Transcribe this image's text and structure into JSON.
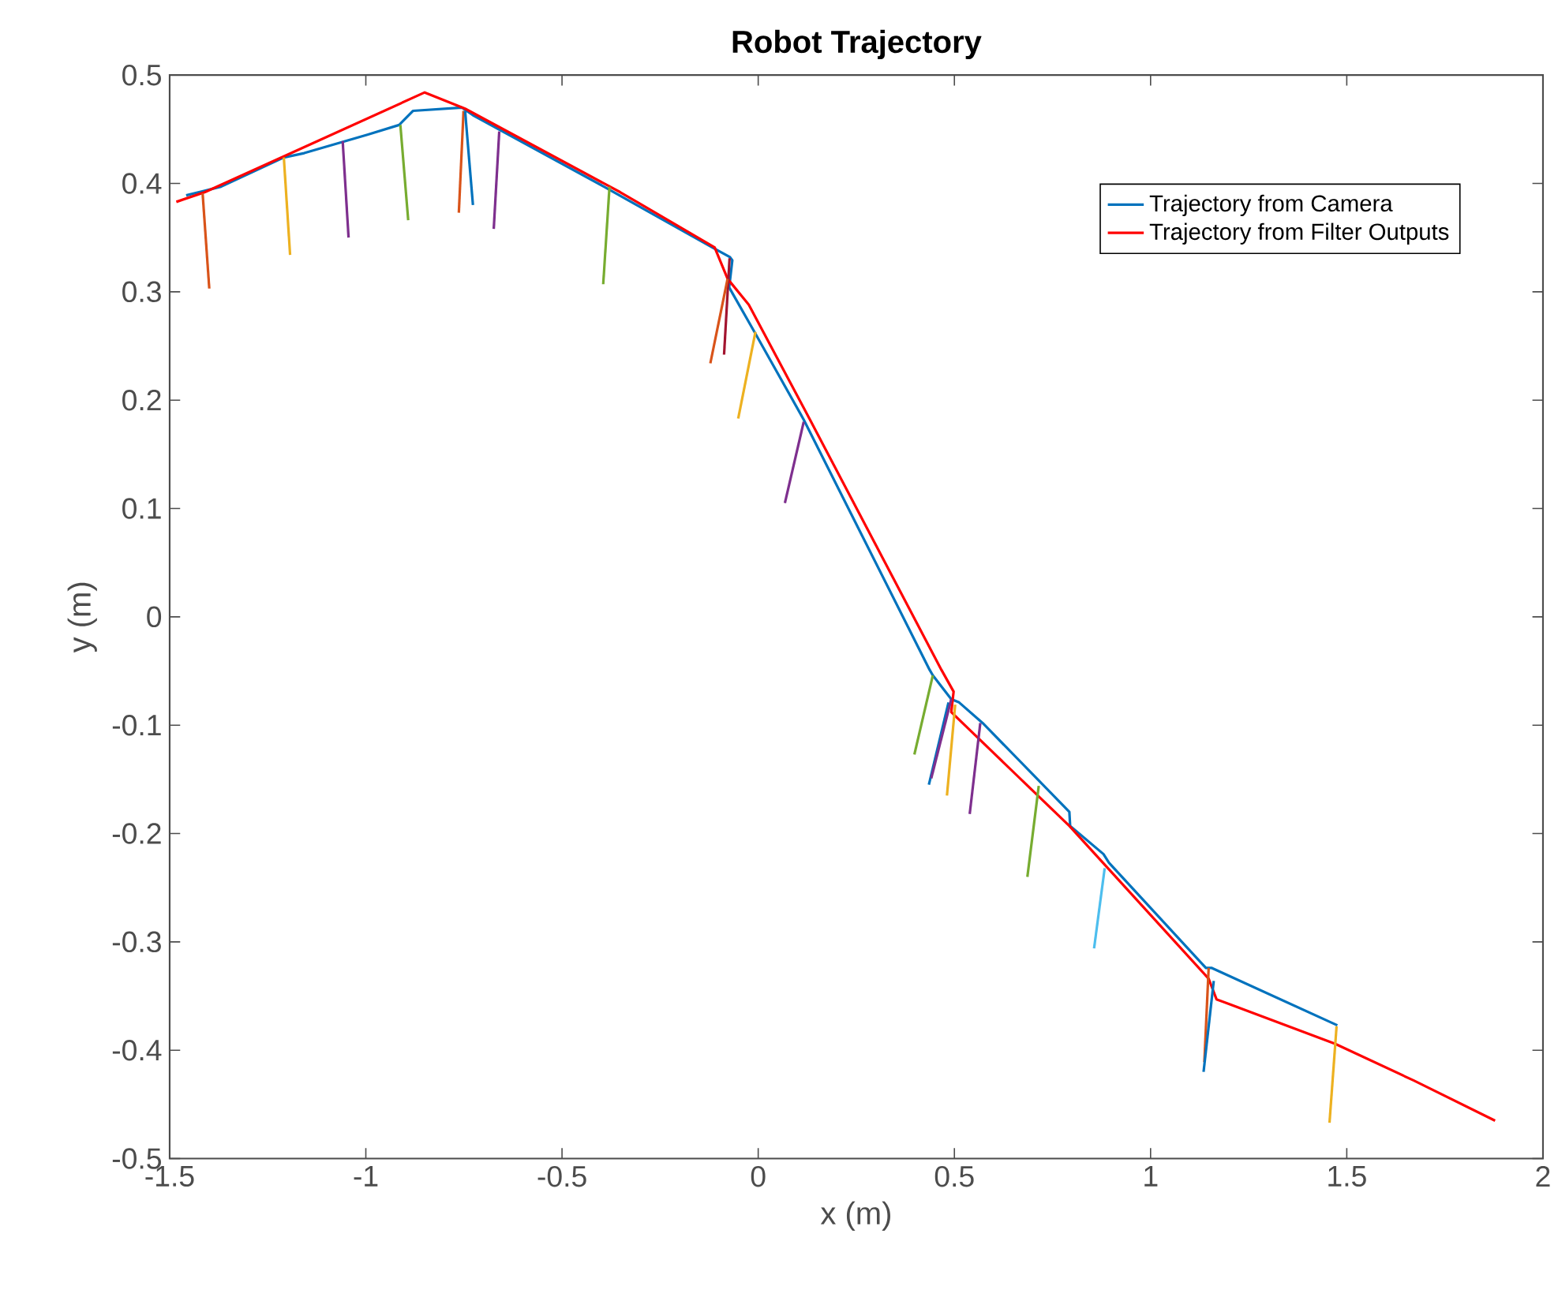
{
  "chart_data": {
    "type": "line",
    "title": "Robot Trajectory",
    "xlabel": "x (m)",
    "ylabel": "y (m)",
    "xlim": [
      -1.5,
      2
    ],
    "ylim": [
      -0.5,
      0.5
    ],
    "xticks": [
      -1.5,
      -1,
      -0.5,
      0,
      0.5,
      1,
      1.5,
      2
    ],
    "yticks": [
      -0.5,
      -0.4,
      -0.3,
      -0.2,
      -0.1,
      0,
      0.1,
      0.2,
      0.3,
      0.4,
      0.5
    ],
    "legend": "top right",
    "series": [
      {
        "name": "Trajectory from Camera",
        "color": "#0072bd",
        "x": [
          -1.458,
          -1.369,
          -1.209,
          -1.157,
          -0.996,
          -0.915,
          -0.88,
          -0.755,
          -0.727,
          -0.393,
          -0.117,
          -0.072,
          -0.066,
          -0.074,
          -0.005,
          0.116,
          0.437,
          0.445,
          0.492,
          0.512,
          0.572,
          0.793,
          0.795,
          0.88,
          0.894,
          1.141,
          1.155,
          1.476
        ],
        "values": [
          0.389,
          0.397,
          0.424,
          0.428,
          0.445,
          0.454,
          0.467,
          0.47,
          0.463,
          0.397,
          0.341,
          0.332,
          0.329,
          0.304,
          0.26,
          0.182,
          -0.049,
          -0.054,
          -0.076,
          -0.079,
          -0.098,
          -0.18,
          -0.193,
          -0.219,
          -0.227,
          -0.324,
          -0.324,
          -0.377
        ]
      },
      {
        "name": "Trajectory from Filter Outputs",
        "color": "#ff0000",
        "x": [
          -1.483,
          -1.41,
          -0.85,
          -0.747,
          -0.352,
          -0.111,
          -0.078,
          -0.024,
          0.132,
          0.467,
          0.498,
          0.492,
          0.793,
          1.148,
          1.168,
          1.47,
          1.671,
          1.878
        ],
        "values": [
          0.383,
          0.392,
          0.484,
          0.469,
          0.392,
          0.341,
          0.312,
          0.288,
          0.182,
          -0.049,
          -0.069,
          -0.088,
          -0.193,
          -0.334,
          -0.353,
          -0.394,
          -0.428,
          -0.465
        ]
      },
      {
        "color": "#d95319",
        "x": [
          -1.416,
          -1.399
        ],
        "values": [
          0.391,
          0.303
        ]
      },
      {
        "color": "#edb120",
        "x": [
          -1.209,
          -1.193
        ],
        "values": [
          0.424,
          0.334
        ]
      },
      {
        "color": "#7e2f8e",
        "x": [
          -1.059,
          -1.044
        ],
        "values": [
          0.439,
          0.35
        ]
      },
      {
        "color": "#77ac30",
        "x": [
          -0.912,
          -0.892
        ],
        "values": [
          0.454,
          0.366
        ]
      },
      {
        "color": "#d95319",
        "x": [
          -0.751,
          -0.763
        ],
        "values": [
          0.467,
          0.373
        ]
      },
      {
        "color": "#0072bd",
        "x": [
          -0.747,
          -0.727
        ],
        "values": [
          0.467,
          0.38
        ]
      },
      {
        "color": "#7e2f8e",
        "x": [
          -0.66,
          -0.674
        ],
        "values": [
          0.448,
          0.358
        ]
      },
      {
        "color": "#77ac30",
        "x": [
          -0.379,
          -0.395
        ],
        "values": [
          0.397,
          0.307
        ]
      },
      {
        "color": "#a2142f",
        "x": [
          -0.073,
          -0.087
        ],
        "values": [
          0.331,
          0.242
        ]
      },
      {
        "color": "#d95319",
        "x": [
          -0.078,
          -0.122
        ],
        "values": [
          0.312,
          0.234
        ]
      },
      {
        "color": "#edb120",
        "x": [
          -0.007,
          -0.051
        ],
        "values": [
          0.263,
          0.183
        ]
      },
      {
        "color": "#7e2f8e",
        "x": [
          0.116,
          0.068
        ],
        "values": [
          0.18,
          0.105
        ]
      },
      {
        "color": "#77ac30",
        "x": [
          0.445,
          0.398
        ],
        "values": [
          -0.054,
          -0.127
        ]
      },
      {
        "color": "#0072bd",
        "x": [
          0.485,
          0.435
        ],
        "values": [
          -0.079,
          -0.155
        ]
      },
      {
        "color": "#7e2f8e",
        "x": [
          0.492,
          0.441
        ],
        "values": [
          -0.076,
          -0.149
        ]
      },
      {
        "color": "#edb120",
        "x": [
          0.502,
          0.481
        ],
        "values": [
          -0.081,
          -0.165
        ]
      },
      {
        "color": "#7e2f8e",
        "x": [
          0.566,
          0.539
        ],
        "values": [
          -0.098,
          -0.182
        ]
      },
      {
        "color": "#77ac30",
        "x": [
          0.715,
          0.686
        ],
        "values": [
          -0.156,
          -0.24
        ]
      },
      {
        "color": "#4dbeee",
        "x": [
          0.883,
          0.856
        ],
        "values": [
          -0.232,
          -0.306
        ]
      },
      {
        "color": "#d95319",
        "x": [
          1.148,
          1.137
        ],
        "values": [
          -0.324,
          -0.411
        ]
      },
      {
        "color": "#0072bd",
        "x": [
          1.161,
          1.135
        ],
        "values": [
          -0.336,
          -0.42
        ]
      },
      {
        "color": "#edb120",
        "x": [
          1.474,
          1.456
        ],
        "values": [
          -0.378,
          -0.467
        ]
      }
    ]
  }
}
